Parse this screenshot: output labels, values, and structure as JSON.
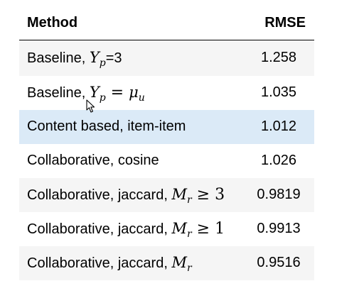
{
  "table": {
    "headers": {
      "method": "Method",
      "rmse": "RMSE"
    },
    "rows": [
      {
        "text": "Baseline, ",
        "math": "Y",
        "sub": "p",
        "op": "",
        "tail": "=3",
        "mathTail": "",
        "rmse": "1.258",
        "style": "odd"
      },
      {
        "text": "Baseline, ",
        "math": "Y",
        "sub": "p",
        "op": " = ",
        "tail": "",
        "mathTail": "μ",
        "mathTailSub": "u",
        "rmse": "1.035",
        "style": "even"
      },
      {
        "text": "Content based, item-item",
        "rmse": "1.012",
        "style": "highlight"
      },
      {
        "text": "Collaborative, cosine",
        "rmse": "1.026",
        "style": "even"
      },
      {
        "text": "Collaborative, jaccard, ",
        "math": "M",
        "sub": "r",
        "op": " ≥ 3",
        "rmse": "0.9819",
        "style": "odd"
      },
      {
        "text": "Collaborative, jaccard, ",
        "math": "M",
        "sub": "r",
        "op": " ≥ 1",
        "rmse": "0.9913",
        "style": "even"
      },
      {
        "text": "Collaborative, jaccard, ",
        "math": "M",
        "sub": "r",
        "rmse": "0.9516",
        "style": "odd"
      }
    ]
  },
  "icons": {
    "cursor": "mouse-pointer-icon"
  }
}
